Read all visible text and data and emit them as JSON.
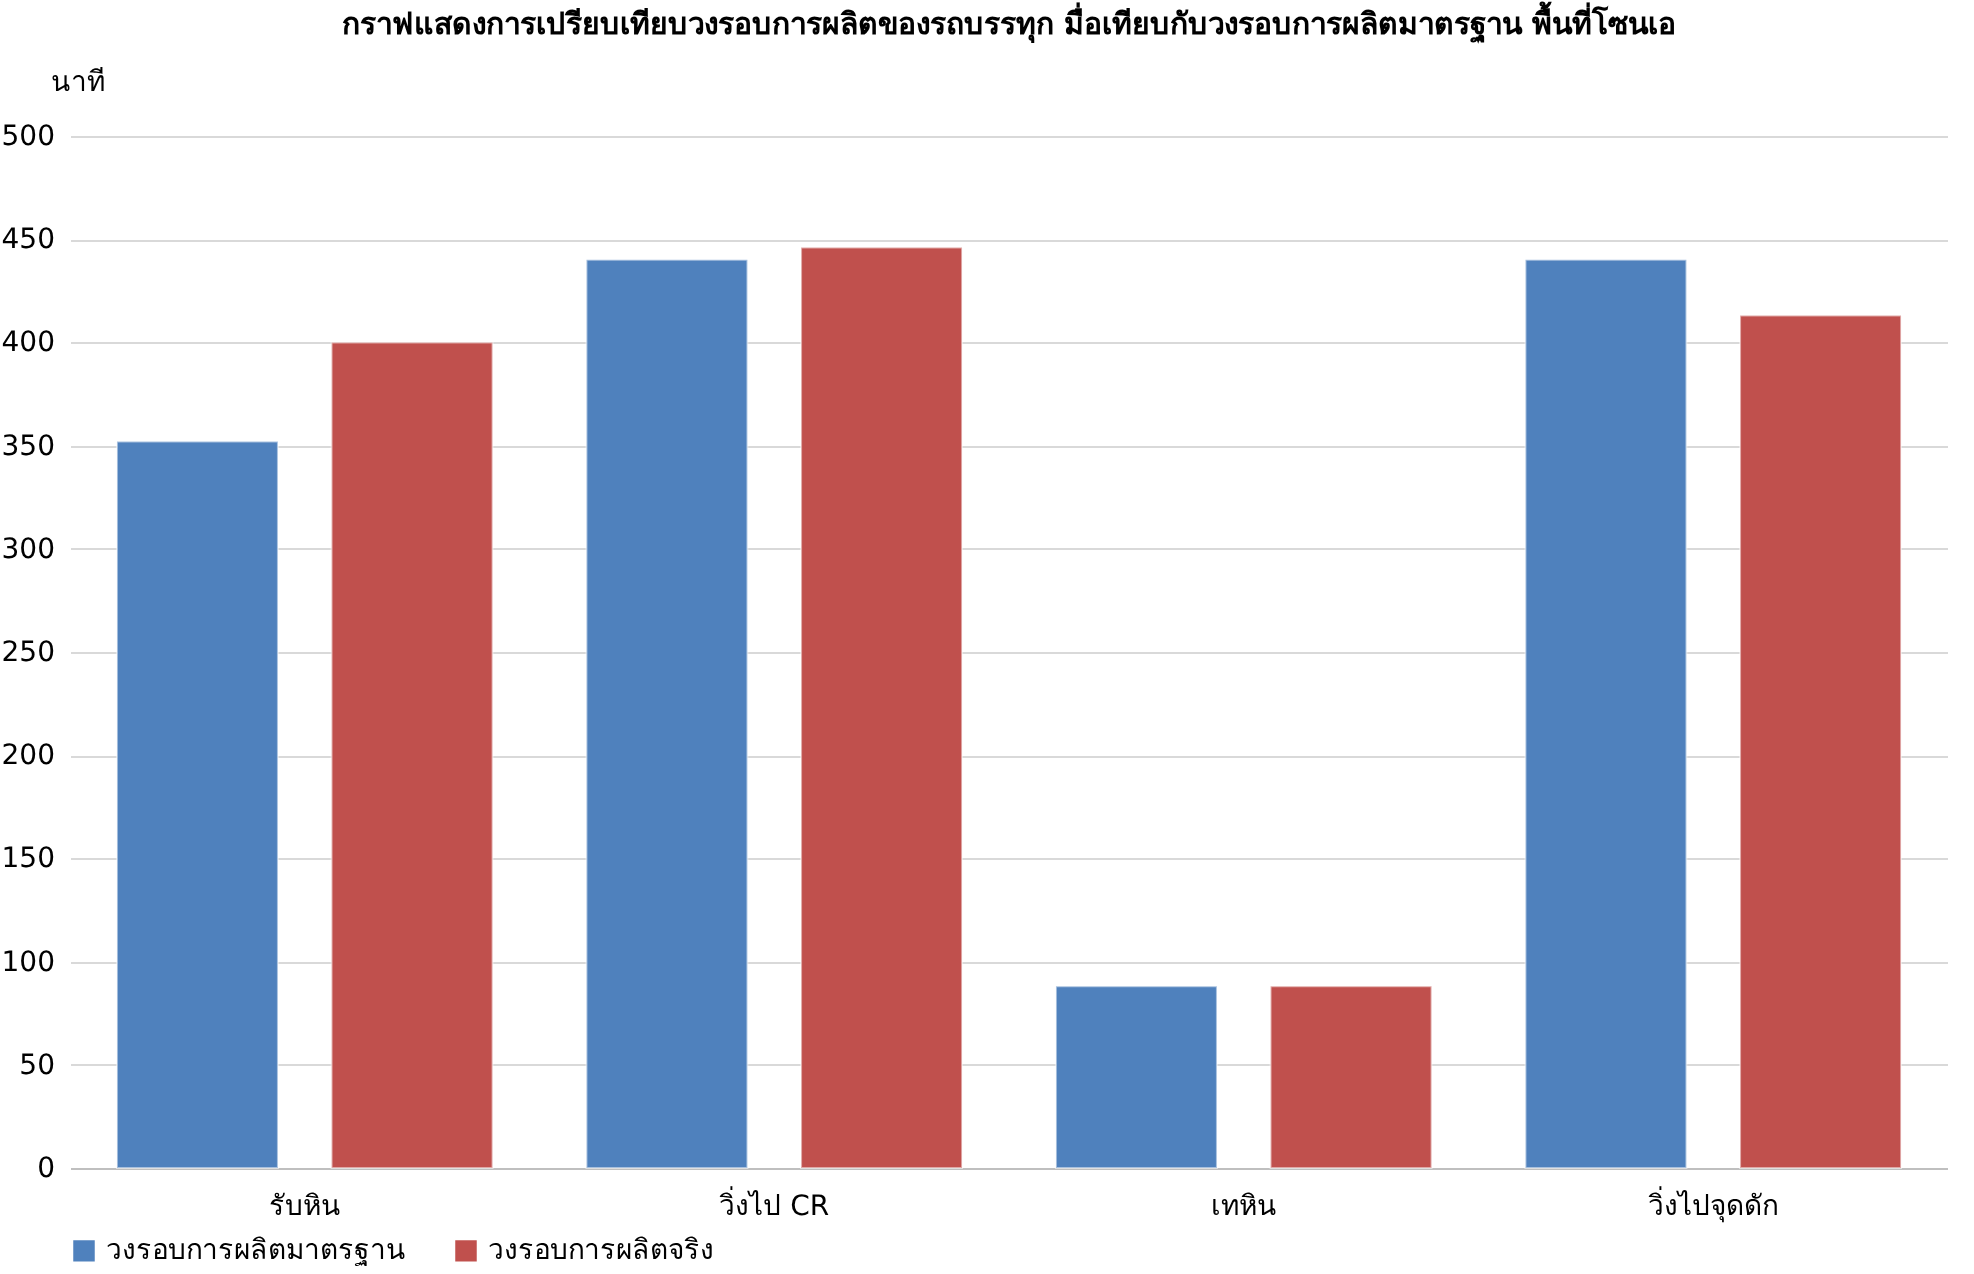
{
  "chart_data": {
    "type": "bar",
    "title": "กราฟแสดงการเปรียบเทียบวงรอบการผลิตของรถบรรทุก มื่อเทียบกับวงรอบการผลิตมาตรฐาน พื้นที่โซนเอ",
    "ylabel": "นาที",
    "categories": [
      "รับหิน",
      "วิ่งไป CR",
      "เทหิน",
      "วิ่งไปจุดดัก"
    ],
    "series": [
      {
        "name": "วงรอบการผลิตมาตรฐาน",
        "color": "#4f81bd",
        "values": [
          352,
          440,
          88,
          440
        ]
      },
      {
        "name": "วงรอบการผลิตจริง",
        "color": "#c0504d",
        "values": [
          400,
          446,
          88,
          413
        ]
      }
    ],
    "ylim": [
      0,
      500
    ],
    "yticks": [
      0,
      50,
      100,
      150,
      200,
      250,
      300,
      350,
      400,
      450,
      500
    ],
    "grid": "y",
    "legend": "bottom"
  }
}
